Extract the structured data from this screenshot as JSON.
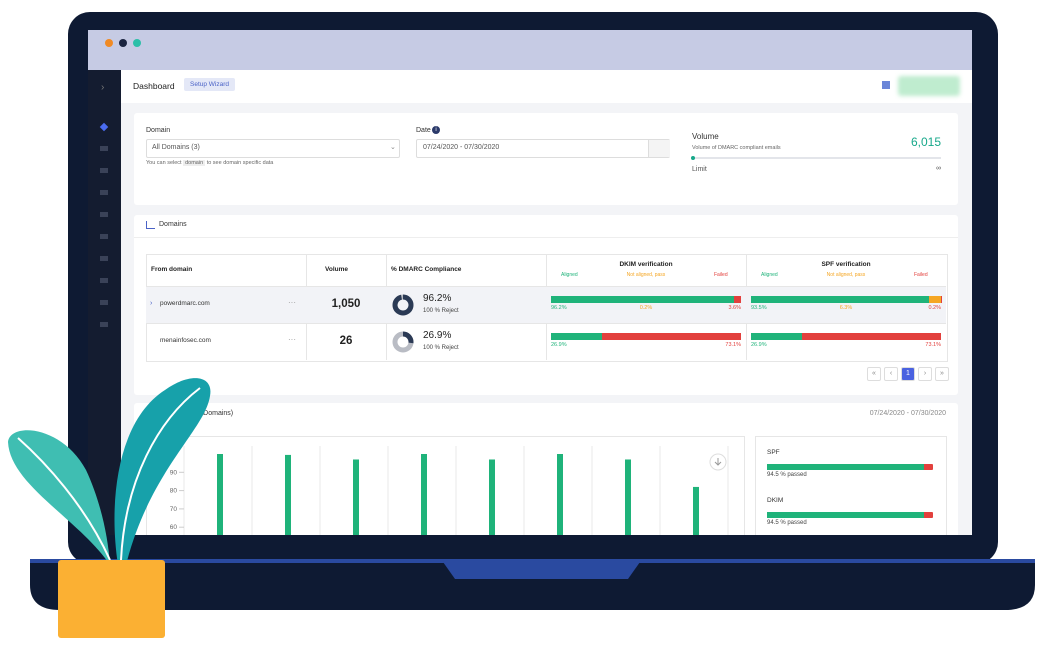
{
  "header": {
    "title": "Dashboard",
    "button": "Setup Wizard"
  },
  "filters": {
    "domain_label": "Domain",
    "domain_value": "All Domains (3)",
    "hint_prefix": "You can select",
    "hint_code": "domain",
    "hint_suffix": "to see domain specific data",
    "date_label": "Date",
    "date_value": "07/24/2020 - 07/30/2020",
    "volume_label": "Volume",
    "volume_subtitle": "Volume of DMARC compliant emails",
    "volume_value": "6,015",
    "limit_label": "Limit",
    "limit_value": "∞"
  },
  "domains": {
    "title": "Domains",
    "columns": [
      "From domain",
      "Volume",
      "% DMARC Compliance",
      "DKIM verification",
      "SPF verification"
    ],
    "legend": [
      "Aligned",
      "Not aligned, pass",
      "Failed"
    ],
    "legend_colors": [
      "#1fb37a",
      "#f5a623",
      "#e2403d"
    ],
    "rows": [
      {
        "domain": "powerdmarc.com",
        "volume": "1,050",
        "compliance": {
          "value": 96.2,
          "label": "96.2%"
        },
        "policy": "100 % Reject",
        "dkim": {
          "values": [
            96.2,
            0.2,
            3.6
          ],
          "value_labels": [
            "96.2%",
            "0.2%",
            "3.6%"
          ]
        },
        "spf": {
          "values": [
            93.5,
            6.3,
            0.2
          ],
          "value_labels": [
            "93.5%",
            "6.3%",
            "0.2%"
          ]
        }
      },
      {
        "domain": "menainfosec.com",
        "volume": "26",
        "compliance": {
          "value": 26.9,
          "label": "26.9%"
        },
        "policy": "100 % Reject",
        "dkim": {
          "values": [
            26.9,
            0,
            73.1
          ],
          "value_labels": [
            "26.9%",
            null,
            "73.1%"
          ]
        },
        "spf": {
          "values": [
            26.9,
            0,
            73.1
          ],
          "value_labels": [
            "26.9%",
            null,
            "73.1%"
          ]
        }
      }
    ],
    "page": "1"
  },
  "overview": {
    "title": "Overview (All Domains)",
    "date": "07/24/2020 - 07/30/2020",
    "chart": {
      "type": "bar",
      "values": [
        100,
        99.5,
        97,
        100,
        97,
        100,
        97,
        82
      ],
      "color": "#1fb37a",
      "ylim": [
        0,
        100
      ],
      "yticks": [
        60,
        70,
        80,
        90
      ],
      "grid": true
    },
    "summary": [
      {
        "name": "SPF",
        "value": 94.5,
        "label": "94.5 % passed"
      },
      {
        "name": "DKIM",
        "value": 94.5,
        "label": "94.5 % passed"
      }
    ]
  }
}
